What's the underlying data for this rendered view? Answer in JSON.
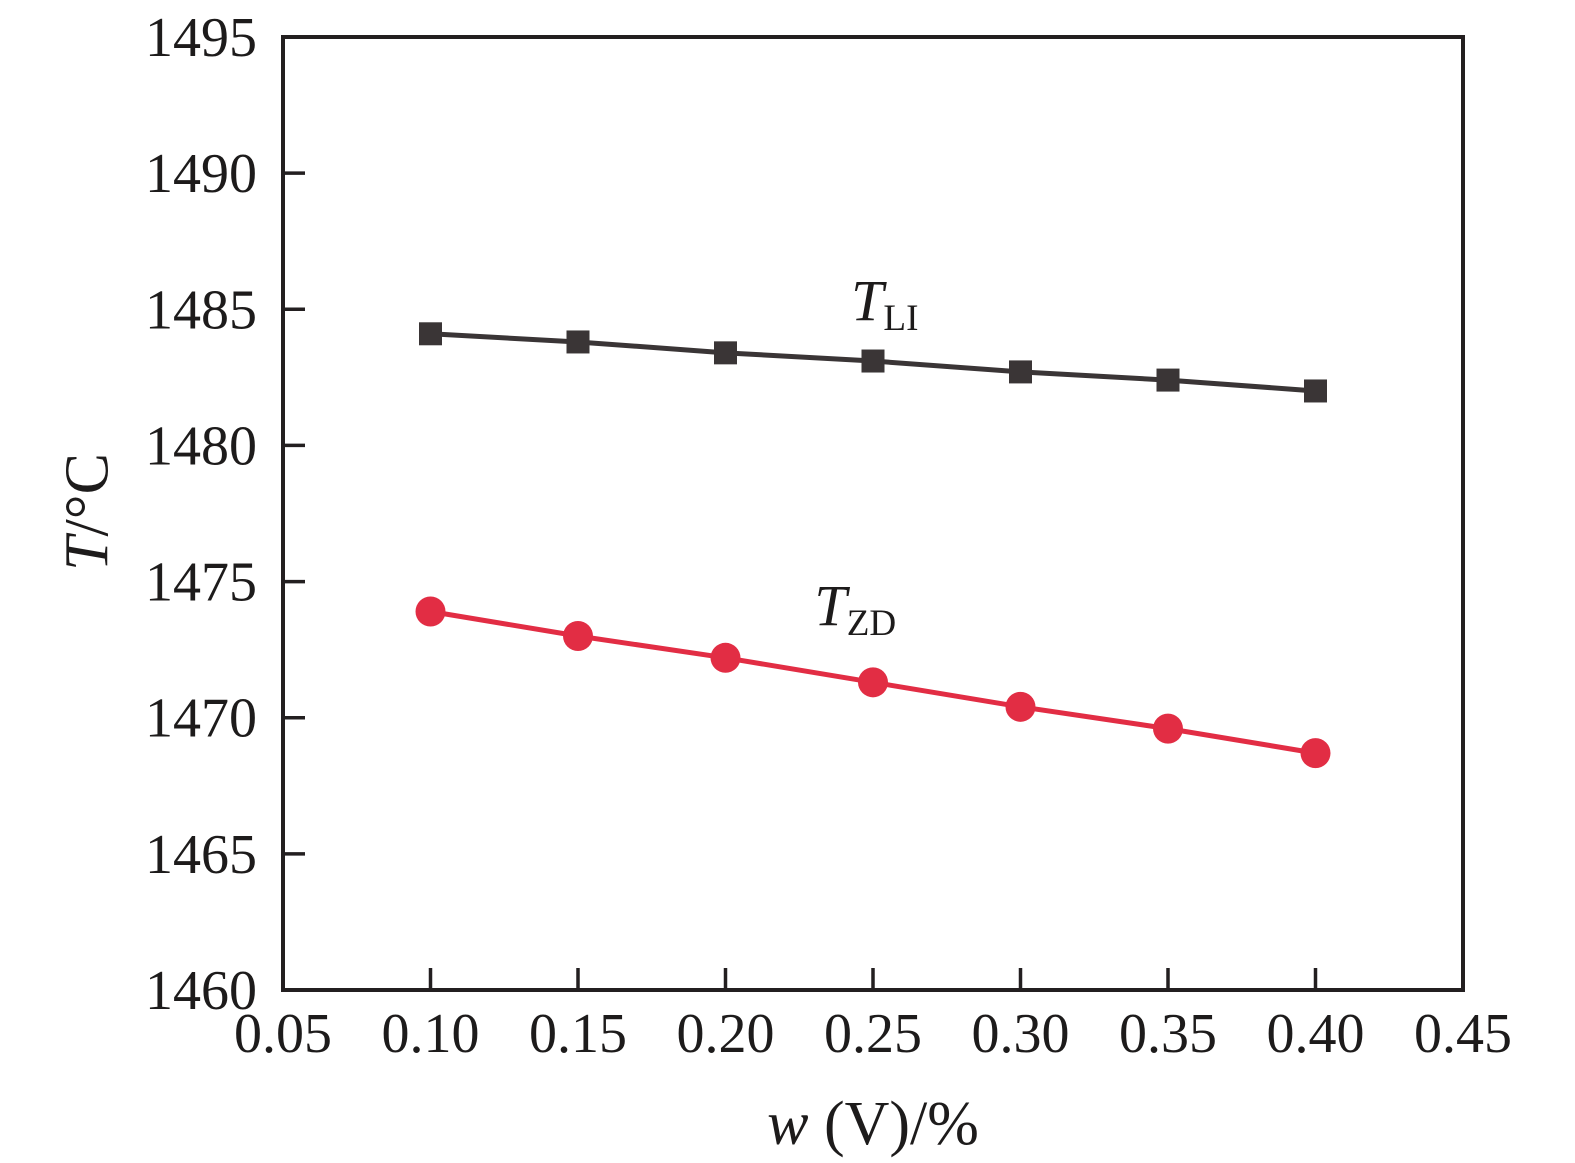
{
  "figure": {
    "background": "#ffffff",
    "text_color": "#1d1b1b"
  },
  "chart_data": {
    "type": "line",
    "title": "",
    "xlabel": {
      "variable": "w",
      "rest": " (V)/%"
    },
    "ylabel": {
      "variable": "T",
      "rest": "/°C"
    },
    "grid": false,
    "legend": "inline-annotations",
    "axis_color": "#231f20",
    "x_axis": {
      "min": 0.05,
      "max": 0.45,
      "tick_values": [
        0.05,
        0.1,
        0.15,
        0.2,
        0.25,
        0.3,
        0.35,
        0.4,
        0.45
      ],
      "tick_labels": [
        "0.05",
        "0.10",
        "0.15",
        "0.20",
        "0.25",
        "0.30",
        "0.35",
        "0.40",
        "0.45"
      ]
    },
    "y_axis": {
      "min": 1460,
      "max": 1495,
      "tick_values": [
        1460,
        1465,
        1470,
        1475,
        1480,
        1485,
        1490,
        1495
      ],
      "tick_labels": [
        "1460",
        "1465",
        "1470",
        "1475",
        "1480",
        "1485",
        "1490",
        "1495"
      ]
    },
    "series": [
      {
        "name": "T_LI",
        "label": {
          "main": "T",
          "sub": "LI"
        },
        "marker": "square",
        "marker_size": 23,
        "color": "#3a3536",
        "line_width": 5,
        "x": [
          0.1,
          0.15,
          0.2,
          0.25,
          0.3,
          0.35,
          0.4
        ],
        "y": [
          1484.1,
          1483.8,
          1483.4,
          1483.1,
          1482.7,
          1482.4,
          1482.0
        ],
        "label_anchor": {
          "x": 0.254,
          "y": 1485.3
        }
      },
      {
        "name": "T_ZD",
        "label": {
          "main": "T",
          "sub": "ZD"
        },
        "marker": "circle",
        "marker_size": 30,
        "color": "#e22d44",
        "line_width": 5,
        "x": [
          0.1,
          0.15,
          0.2,
          0.25,
          0.3,
          0.35,
          0.4
        ],
        "y": [
          1473.9,
          1473.0,
          1472.2,
          1471.3,
          1470.4,
          1469.6,
          1468.7
        ],
        "label_anchor": {
          "x": 0.244,
          "y": 1474.1
        }
      }
    ]
  }
}
